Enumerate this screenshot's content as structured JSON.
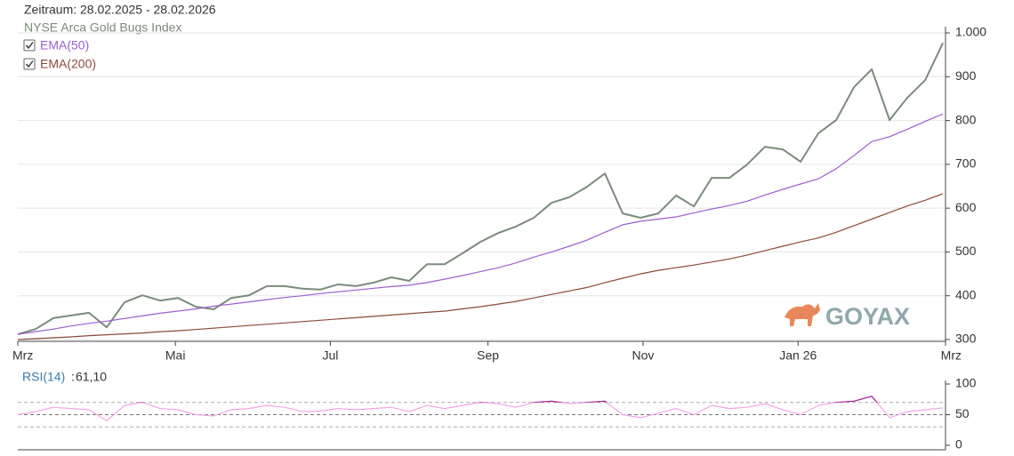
{
  "chart_data": [
    {
      "type": "line",
      "title": "Zeitraum: 28.02.2025 - 28.02.2026",
      "x": [
        0,
        7,
        14,
        21,
        28,
        35,
        42,
        49,
        56,
        63,
        70,
        77,
        84,
        91,
        98,
        105,
        112,
        119,
        126,
        133,
        140,
        147,
        154,
        161,
        168,
        175,
        182,
        189,
        196,
        203,
        210,
        217,
        224,
        231,
        238,
        245,
        252,
        259,
        266,
        273,
        280,
        287,
        294,
        301,
        308,
        315,
        322,
        329,
        336,
        343,
        350,
        357,
        364
      ],
      "xlim": [
        0,
        365
      ],
      "xticks": [
        {
          "value": 0,
          "label": "Mrz"
        },
        {
          "value": 62,
          "label": "Mai"
        },
        {
          "value": 123,
          "label": "Jul"
        },
        {
          "value": 185,
          "label": "Sep"
        },
        {
          "value": 246,
          "label": "Nov"
        },
        {
          "value": 307,
          "label": "Jan 26"
        },
        {
          "value": 365,
          "label": "Mrz"
        }
      ],
      "ylim": [
        300,
        1000
      ],
      "yticks": [
        300,
        400,
        500,
        600,
        700,
        800,
        900,
        {
          "value": 1000,
          "label": "1.000"
        }
      ],
      "grid": true,
      "watermark": "GOYAX",
      "series": [
        {
          "name": "NYSE Arca Gold Bugs Index",
          "color": "#7b8b7b",
          "values": [
            312,
            324,
            349,
            355,
            361,
            328,
            385,
            401,
            389,
            395,
            375,
            369,
            395,
            401,
            422,
            422,
            416,
            414,
            426,
            422,
            430,
            442,
            434,
            472,
            472,
            497,
            523,
            543,
            558,
            578,
            612,
            625,
            649,
            679,
            588,
            578,
            588,
            629,
            604,
            669,
            669,
            700,
            740,
            734,
            706,
            771,
            801,
            876,
            917,
            801,
            852,
            892,
            977
          ]
        },
        {
          "name": "EMA(50)",
          "color": "#9b5fd0",
          "values": [
            312,
            318,
            324,
            331,
            337,
            342,
            348,
            354,
            360,
            365,
            370,
            376,
            381,
            386,
            391,
            396,
            400,
            405,
            409,
            413,
            417,
            421,
            424,
            430,
            438,
            446,
            455,
            464,
            475,
            488,
            500,
            513,
            527,
            545,
            562,
            570,
            575,
            580,
            589,
            598,
            606,
            616,
            630,
            643,
            655,
            667,
            690,
            720,
            752,
            763,
            780,
            798,
            815
          ]
        },
        {
          "name": "EMA(200)",
          "color": "#8b4a3a",
          "values": [
            300,
            302,
            304,
            306,
            309,
            311,
            313,
            315,
            318,
            320,
            323,
            326,
            329,
            332,
            335,
            338,
            341,
            344,
            347,
            350,
            353,
            356,
            359,
            362,
            365,
            370,
            375,
            381,
            387,
            395,
            403,
            411,
            419,
            430,
            440,
            450,
            458,
            464,
            470,
            477,
            484,
            493,
            503,
            513,
            523,
            532,
            545,
            560,
            575,
            590,
            605,
            618,
            633
          ]
        }
      ]
    },
    {
      "type": "line",
      "ylim": [
        0,
        100
      ],
      "yticks": [
        0,
        50,
        100
      ],
      "reference_lines": [
        30,
        50,
        70
      ],
      "series": [
        {
          "name": "RSI(14)",
          "color": "#f2a6e6",
          "overbought_color": "#a0209a",
          "values": [
            50,
            55,
            62,
            60,
            58,
            40,
            65,
            70,
            60,
            58,
            50,
            48,
            58,
            60,
            65,
            62,
            55,
            56,
            60,
            58,
            60,
            62,
            55,
            65,
            60,
            65,
            70,
            68,
            62,
            70,
            72,
            68,
            70,
            72,
            50,
            45,
            52,
            60,
            50,
            65,
            60,
            62,
            68,
            58,
            50,
            65,
            70,
            72,
            80,
            45,
            55,
            58,
            61.1
          ],
          "current_label": "61,10"
        }
      ]
    }
  ]
}
